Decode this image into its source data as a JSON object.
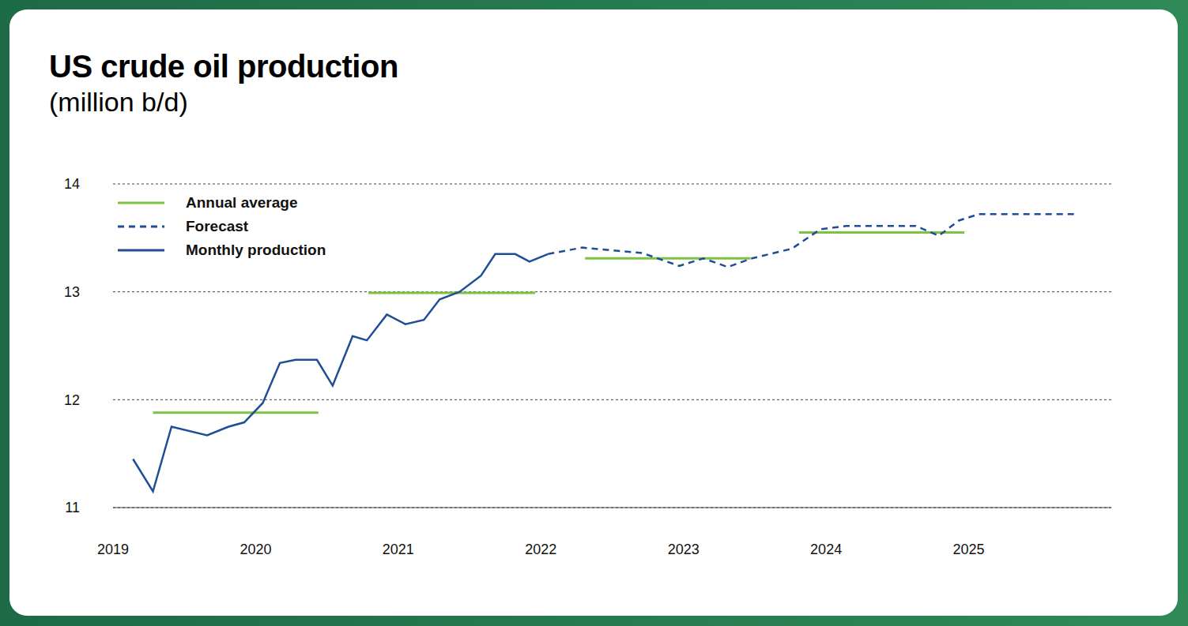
{
  "chart_data": {
    "type": "line",
    "title": "US crude oil production",
    "subtitle": "(million b/d)",
    "xlim": [
      2019,
      2026
    ],
    "xticks": [
      2019,
      2020,
      2021,
      2022,
      2023,
      2024,
      2025
    ],
    "ylim": [
      11,
      14
    ],
    "yticks": [
      11,
      12,
      13,
      14
    ],
    "grid": true,
    "legend": "top-left",
    "series": [
      {
        "name": "Annual average",
        "color": "#7dc242",
        "line_style": "solid",
        "segments": [
          {
            "x": [
              2019.28,
              2020.44
            ],
            "values": [
              11.88,
              11.88
            ]
          },
          {
            "x": [
              2020.79,
              2021.96
            ],
            "values": [
              12.99,
              12.99
            ]
          },
          {
            "x": [
              2022.31,
              2023.47
            ],
            "values": [
              13.31,
              13.31
            ]
          },
          {
            "x": [
              2023.81,
              2024.97
            ],
            "values": [
              13.55,
              13.55
            ]
          }
        ]
      },
      {
        "name": "Forecast",
        "color": "#1f4e96",
        "line_style": "dashed",
        "x": [
          2022.05,
          2022.29,
          2022.71,
          2022.97,
          2023.14,
          2023.31,
          2023.48,
          2023.76,
          2023.96,
          2024.14,
          2024.63,
          2024.79,
          2024.93,
          2025.07,
          2025.76
        ],
        "values": [
          13.35,
          13.41,
          13.36,
          13.24,
          13.31,
          13.23,
          13.31,
          13.4,
          13.58,
          13.61,
          13.61,
          13.52,
          13.66,
          13.72,
          13.72
        ]
      },
      {
        "name": "Monthly production",
        "color": "#1f4e96",
        "line_style": "solid",
        "x": [
          2019.14,
          2019.28,
          2019.41,
          2019.66,
          2019.81,
          2019.92,
          2020.05,
          2020.17,
          2020.28,
          2020.43,
          2020.54,
          2020.68,
          2020.78,
          2020.92,
          2021.05,
          2021.18,
          2021.29,
          2021.43,
          2021.58,
          2021.68,
          2021.82,
          2021.92,
          2022.05
        ],
        "values": [
          11.45,
          11.15,
          11.75,
          11.67,
          11.75,
          11.79,
          11.97,
          12.34,
          12.37,
          12.37,
          12.13,
          12.59,
          12.55,
          12.79,
          12.7,
          12.74,
          12.93,
          13.0,
          13.15,
          13.35,
          13.35,
          13.28,
          13.35
        ]
      }
    ]
  }
}
